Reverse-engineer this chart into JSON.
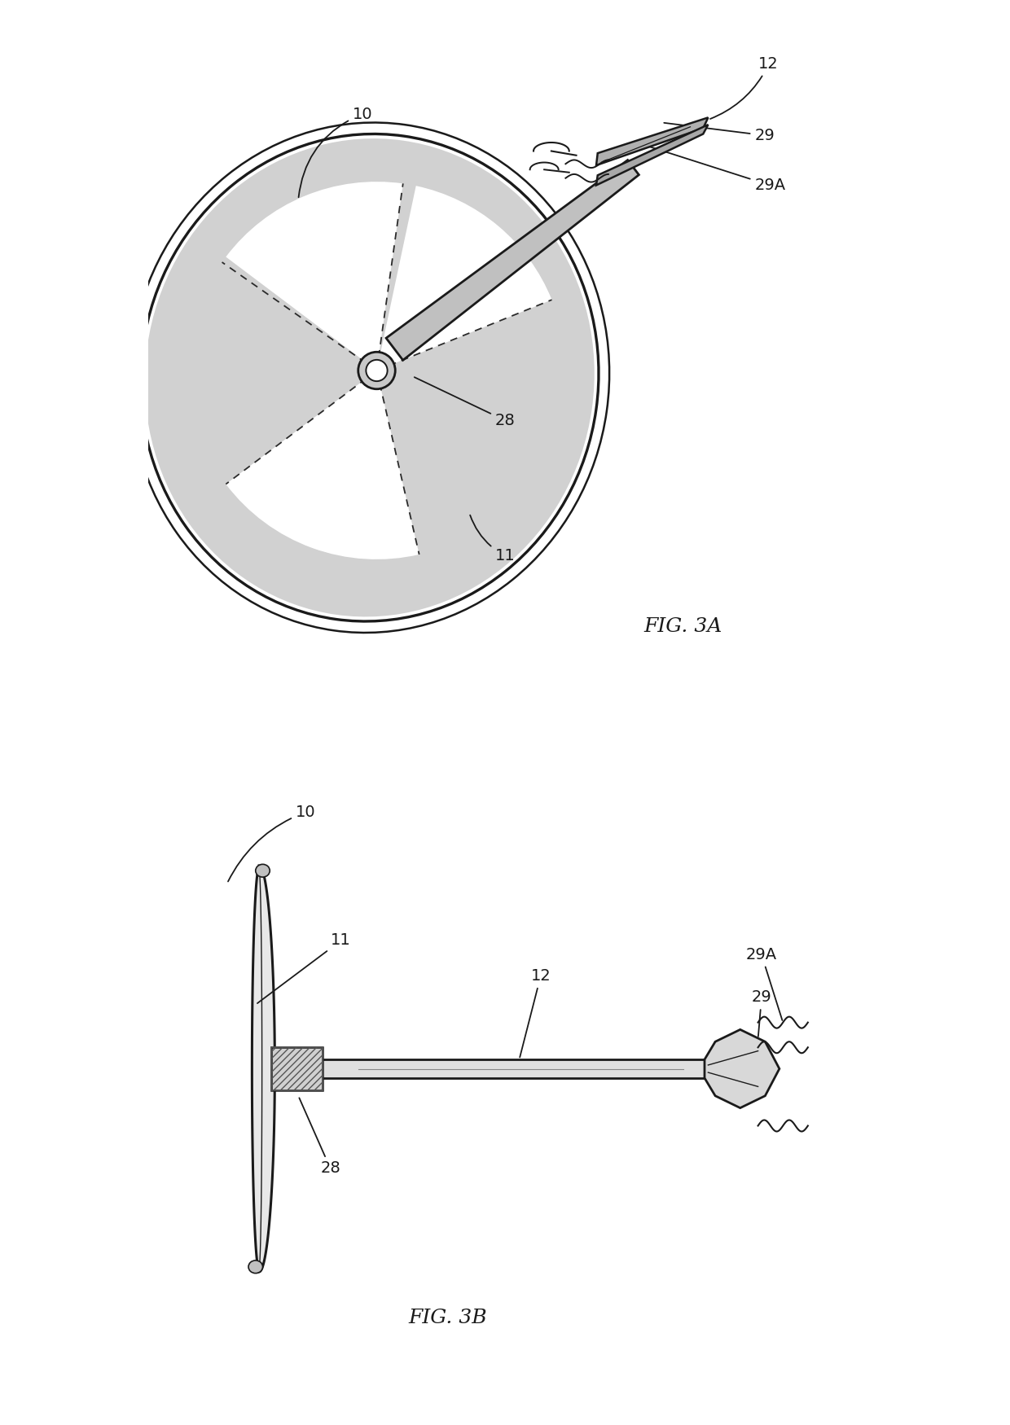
{
  "background_color": "#ffffff",
  "line_color": "#1a1a1a",
  "fig3a_title": "FIG. 3A",
  "fig3b_title": "FIG. 3B",
  "labels": {
    "10": "10",
    "11": "11",
    "12": "12",
    "28": "28",
    "29": "29",
    "29A": "29A"
  }
}
